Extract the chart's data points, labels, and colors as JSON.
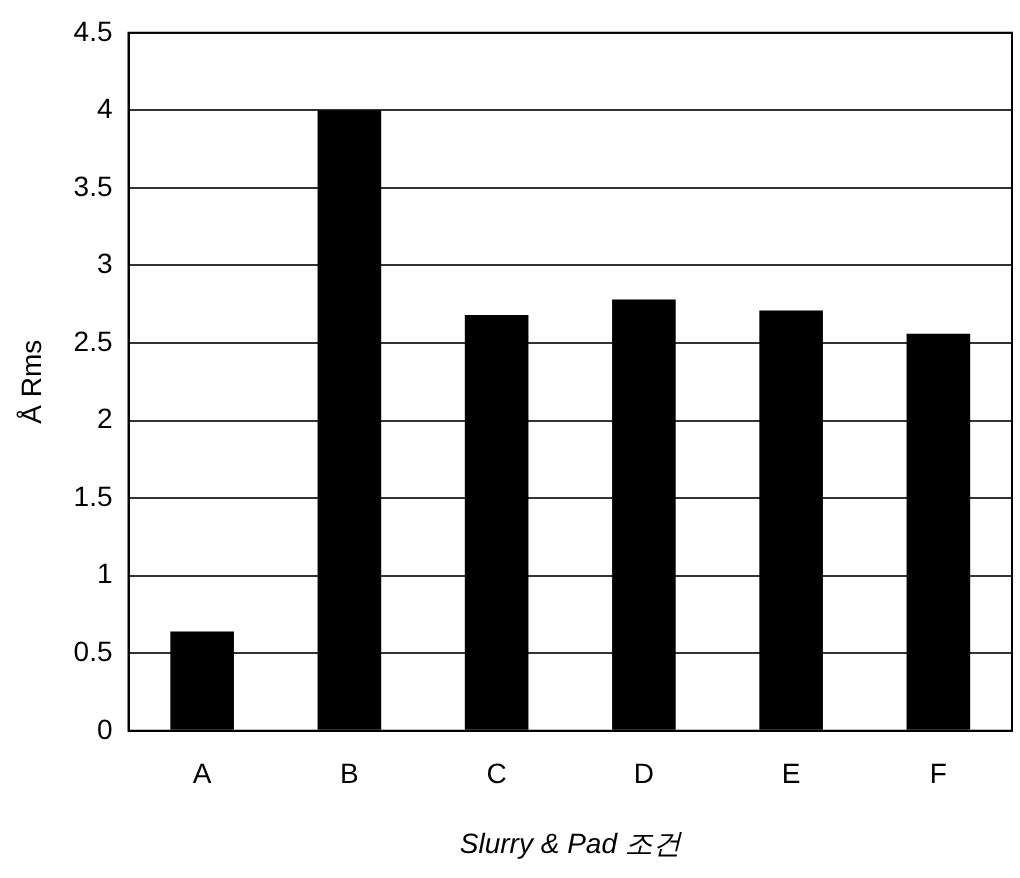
{
  "chart_data": {
    "type": "bar",
    "xlabel": "Slurry & Pad 조건",
    "ylabel": "Å Rms",
    "categories": [
      "A",
      "B",
      "C",
      "D",
      "E",
      "F"
    ],
    "values": [
      0.64,
      4.0,
      2.68,
      2.78,
      2.71,
      2.56
    ],
    "color": "#000000",
    "ylim": [
      0,
      4.5
    ],
    "yticks": [
      0,
      0.5,
      1,
      1.5,
      2,
      2.5,
      3,
      3.5,
      4,
      4.5
    ],
    "grid": "y",
    "legend": false
  }
}
